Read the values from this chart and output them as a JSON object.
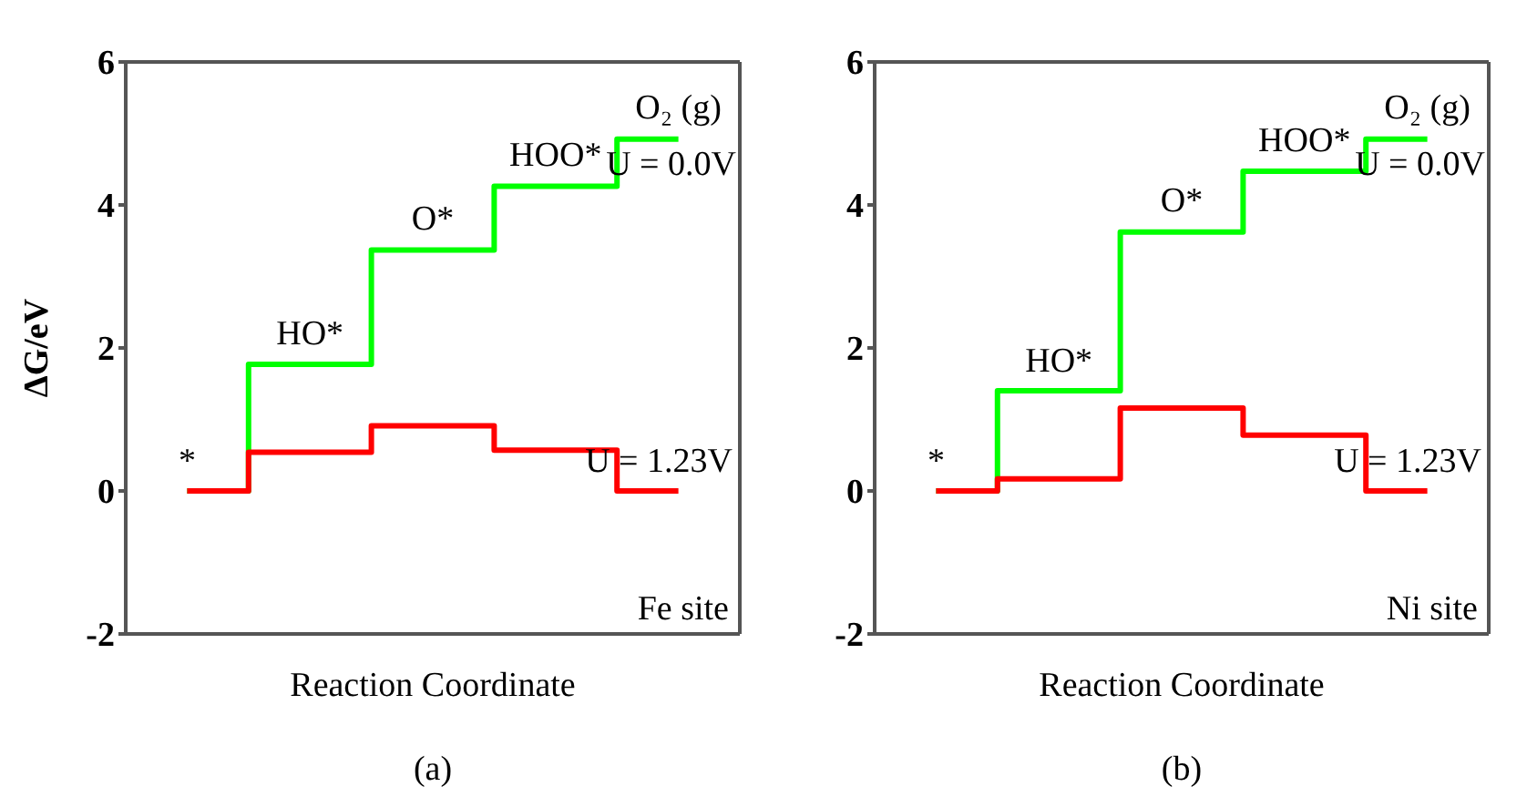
{
  "chart_data": [
    {
      "type": "step",
      "categories": [
        null,
        null,
        null,
        null,
        null
      ],
      "xlabel": "Reaction Coordinate",
      "ylabel": "ΔG/eV",
      "ylim": [
        -2,
        6
      ],
      "yticks": [
        -2,
        0,
        2,
        4,
        6
      ],
      "grid": false,
      "legend": false,
      "tick_labels": "y",
      "series": [
        {
          "name": "U = 0.0V",
          "color": "#00ff00",
          "values": [
            0,
            1.77,
            3.37,
            4.26,
            4.92
          ]
        },
        {
          "name": "U = 1.23V",
          "color": "#ff0000",
          "values": [
            0,
            0.54,
            0.91,
            0.57,
            0
          ]
        }
      ],
      "annotations": [
        "*",
        "HO*",
        "O*",
        "HOO*",
        "O₂ (g)",
        "Fe site",
        "(a)"
      ]
    },
    {
      "type": "step",
      "categories": [
        null,
        null,
        null,
        null,
        null
      ],
      "xlabel": "Reaction Coordinate",
      "ylim": [
        -2,
        6
      ],
      "yticks": [
        -2,
        0,
        2,
        4,
        6
      ],
      "grid": false,
      "legend": false,
      "tick_labels": "y",
      "series": [
        {
          "name": "U = 0.0V",
          "color": "#00ff00",
          "values": [
            0,
            1.4,
            3.62,
            4.47,
            4.92
          ]
        },
        {
          "name": "U = 1.23V",
          "color": "#ff0000",
          "values": [
            0,
            0.17,
            1.16,
            0.78,
            0
          ]
        }
      ],
      "annotations": [
        "*",
        "HO*",
        "O*",
        "HOO*",
        "O₂ (g)",
        "Ni site",
        "(b)"
      ]
    }
  ]
}
